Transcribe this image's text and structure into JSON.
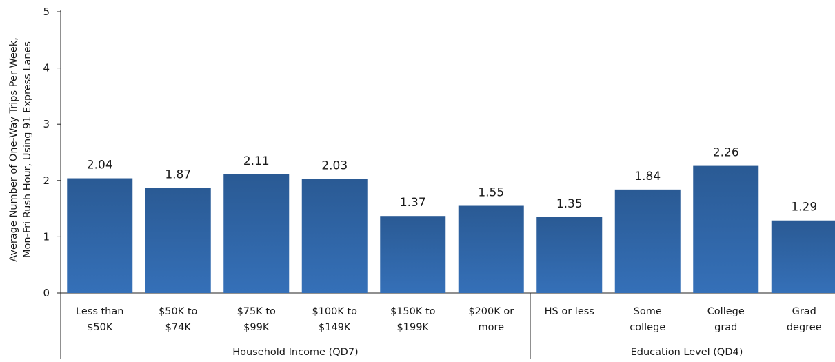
{
  "chart_data": {
    "type": "bar",
    "ylabel_lines": [
      "Average Number of One-Way Trips Per Week,",
      "Mon-Fri Rush Hour, Using 91 Express Lanes"
    ],
    "ylim": [
      0,
      5
    ],
    "yticks": [
      "0",
      "1",
      "2",
      "3",
      "4",
      "5"
    ],
    "grid": false,
    "bar_color_top": "#2a5a94",
    "bar_color_bottom": "#3570b8",
    "groups": [
      {
        "label": "Household Income (QD7)",
        "categories": [
          [
            "Less than",
            "$50K"
          ],
          [
            "$50K to",
            "$74K"
          ],
          [
            "$75K to",
            "$99K"
          ],
          [
            "$100K to",
            "$149K"
          ],
          [
            "$150K to",
            "$199K"
          ],
          [
            "$200K or",
            "more"
          ]
        ],
        "values": [
          2.04,
          1.87,
          2.11,
          2.03,
          1.37,
          1.55
        ],
        "value_labels": [
          "2.04",
          "1.87",
          "2.11",
          "2.03",
          "1.37",
          "1.55"
        ]
      },
      {
        "label": "Education Level (QD4)",
        "categories": [
          [
            "HS or less"
          ],
          [
            "Some",
            "college"
          ],
          [
            "College",
            "grad"
          ],
          [
            "Grad",
            "degree"
          ]
        ],
        "values": [
          1.35,
          1.84,
          2.26,
          1.29
        ],
        "value_labels": [
          "1.35",
          "1.84",
          "2.26",
          "1.29"
        ]
      }
    ]
  }
}
